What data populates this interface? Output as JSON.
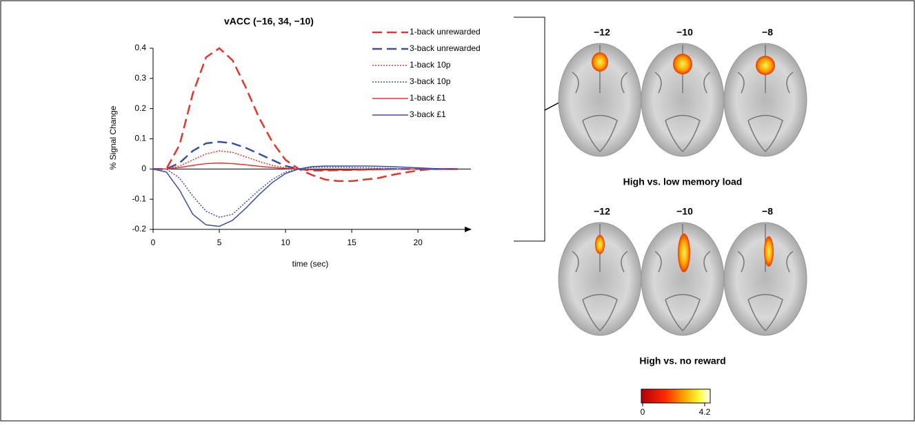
{
  "chart_data": {
    "type": "line",
    "title": "vACC (−16, 34, −10)",
    "x_label": "time (sec)",
    "y_label": "% Signal Change",
    "x": [
      0,
      1,
      2,
      3,
      4,
      5,
      6,
      7,
      8,
      9,
      10,
      11,
      12,
      13,
      14,
      15,
      16,
      17,
      18,
      19,
      20,
      21,
      22,
      23
    ],
    "xlim": [
      0,
      24
    ],
    "xticks": [
      0,
      5,
      10,
      15,
      20
    ],
    "ylim": [
      -0.2,
      0.4
    ],
    "yticks": [
      -0.2,
      -0.1,
      0,
      0.1,
      0.2,
      0.3,
      0.4
    ],
    "series": [
      {
        "name": "1-back unrewarded",
        "color": "#e8332a",
        "style": "dashed",
        "values": [
          0,
          0,
          0.08,
          0.25,
          0.37,
          0.4,
          0.36,
          0.27,
          0.17,
          0.09,
          0.03,
          0,
          -0.02,
          -0.035,
          -0.04,
          -0.04,
          -0.035,
          -0.03,
          -0.02,
          -0.012,
          -0.005,
          0,
          0,
          0
        ]
      },
      {
        "name": "3-back unrewarded",
        "color": "#3a4fa3",
        "style": "dashed",
        "values": [
          0,
          0,
          0.02,
          0.06,
          0.085,
          0.09,
          0.085,
          0.07,
          0.05,
          0.03,
          0.01,
          0,
          -0.005,
          -0.005,
          -0.004,
          -0.003,
          -0.002,
          -0.001,
          0,
          0,
          0,
          0,
          0,
          0
        ]
      },
      {
        "name": "1-back 10p",
        "color": "#e8332a",
        "style": "dotted",
        "values": [
          0,
          0,
          0.01,
          0.03,
          0.05,
          0.06,
          0.055,
          0.04,
          0.025,
          0.012,
          0.004,
          0,
          -0.003,
          -0.004,
          -0.004,
          -0.003,
          -0.002,
          -0.001,
          0,
          0,
          0,
          0,
          0,
          0
        ]
      },
      {
        "name": "3-back 10p",
        "color": "#3a4fa3",
        "style": "dotted",
        "values": [
          0,
          0,
          -0.03,
          -0.09,
          -0.14,
          -0.16,
          -0.15,
          -0.11,
          -0.07,
          -0.035,
          -0.01,
          0,
          0.005,
          0.006,
          0.006,
          0.005,
          0.004,
          0.003,
          0.002,
          0.001,
          0,
          0,
          0,
          0
        ]
      },
      {
        "name": "1-back £1",
        "color": "#e8332a",
        "style": "solid",
        "values": [
          0,
          0,
          0.005,
          0.012,
          0.018,
          0.02,
          0.018,
          0.014,
          0.009,
          0.005,
          0.002,
          0,
          -0.002,
          -0.003,
          -0.003,
          -0.003,
          -0.002,
          -0.002,
          -0.001,
          0,
          0,
          0,
          0,
          0
        ]
      },
      {
        "name": "3-back £1",
        "color": "#3a4fa3",
        "style": "solid",
        "values": [
          0,
          -0.01,
          -0.07,
          -0.15,
          -0.185,
          -0.19,
          -0.17,
          -0.13,
          -0.085,
          -0.045,
          -0.015,
          0,
          0.008,
          0.01,
          0.01,
          0.01,
          0.01,
          0.009,
          0.008,
          0.006,
          0.004,
          0.002,
          0,
          0
        ]
      }
    ]
  },
  "brain_panels": [
    {
      "slices": [
        "−12",
        "−10",
        "−8"
      ],
      "caption": "High vs. low memory load"
    },
    {
      "slices": [
        "−12",
        "−10",
        "−8"
      ],
      "caption": "High vs. no reward"
    }
  ],
  "colorbar": {
    "min": 0,
    "max": 4.2
  }
}
